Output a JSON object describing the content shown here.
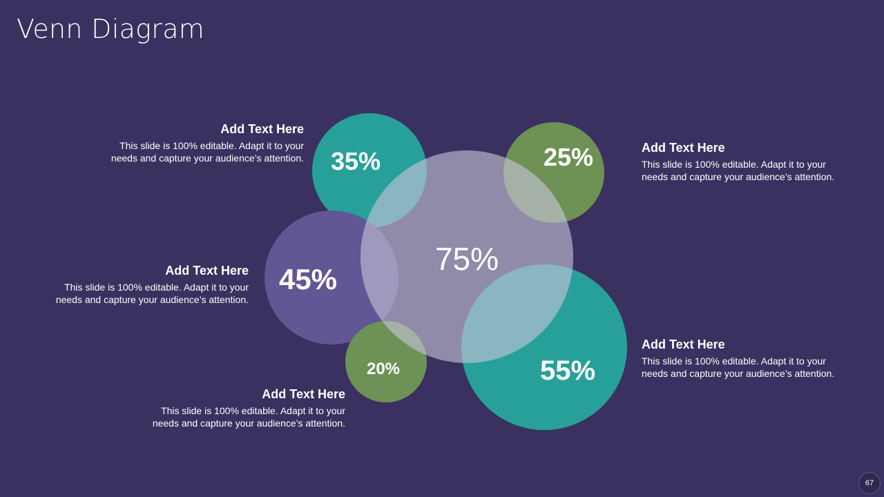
{
  "slide": {
    "title": "Venn Diagram",
    "page_number": "67"
  },
  "colors": {
    "background": "#3a3160",
    "teal": "#27a09a",
    "green": "#6e9256",
    "purple": "#625694",
    "center": "#c6c3d8"
  },
  "circles": [
    {
      "id": "center",
      "label": "75%",
      "color": "#c6c3d8"
    },
    {
      "id": "top-left",
      "label": "35%",
      "color": "#27a09a"
    },
    {
      "id": "top-right",
      "label": "25%",
      "color": "#6e9256"
    },
    {
      "id": "middle-left",
      "label": "45%",
      "color": "#625694"
    },
    {
      "id": "bottom-left",
      "label": "20%",
      "color": "#6e9256"
    },
    {
      "id": "bottom-right",
      "label": "55%",
      "color": "#27a09a"
    }
  ],
  "text_blocks": [
    {
      "heading": "Add Text Here",
      "body_line1": "This slide is 100% editable. Adapt it to your",
      "body_line2": "needs and capture your audience’s attention."
    },
    {
      "heading": "Add Text Here",
      "body_line1": "This slide is 100% editable. Adapt it to your",
      "body_line2": "needs and capture your audience’s attention."
    },
    {
      "heading": "Add Text Here",
      "body_line1": "This slide is 100% editable. Adapt it to your",
      "body_line2": "needs and capture your audience’s attention."
    },
    {
      "heading": "Add Text Here",
      "body_line1": "This slide is 100% editable. Adapt it to your",
      "body_line2": "needs and capture your audience’s attention."
    },
    {
      "heading": "Add Text Here",
      "body_line1": "This slide is 100% editable. Adapt it to your",
      "body_line2": "needs and capture your audience’s attention."
    }
  ]
}
